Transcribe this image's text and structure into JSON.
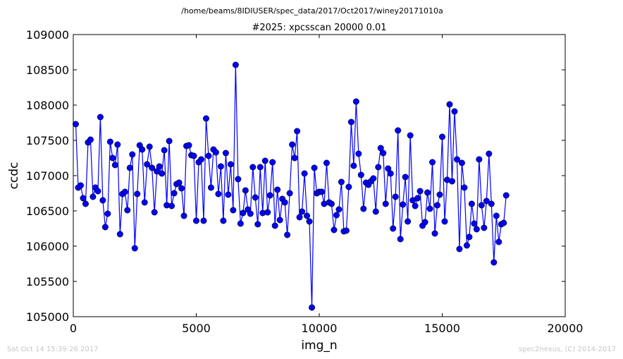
{
  "chart_data": {
    "type": "scatter",
    "suptitle": "/home/beams/8IDIUSER/spec_data/2017/Oct2017/winey20171010a",
    "title": "#2025: xpcsscan 20000 0.01",
    "xlabel": "img_n",
    "ylabel": "ccdc",
    "xlim": [
      0,
      20000
    ],
    "ylim": [
      105000,
      109000
    ],
    "xticks": [
      0,
      5000,
      10000,
      15000,
      20000
    ],
    "yticks": [
      105000,
      105500,
      106000,
      106500,
      107000,
      107500,
      108000,
      108500,
      109000
    ],
    "xtick_labels": [
      "0",
      "5000",
      "10000",
      "15000",
      "20000"
    ],
    "ytick_labels": [
      "105000",
      "105500",
      "106000",
      "106500",
      "107000",
      "107500",
      "108000",
      "108500",
      "109000"
    ],
    "grid": false,
    "legend": false,
    "marker": "circle",
    "line": true,
    "color": "#0000ff",
    "series": [
      {
        "x_start": 100,
        "x_step": 100,
        "values": [
          107730,
          106830,
          106860,
          106680,
          106600,
          107470,
          107510,
          106700,
          106830,
          106780,
          107830,
          106650,
          106270,
          106460,
          107480,
          107250,
          107150,
          107440,
          106170,
          106740,
          106770,
          106510,
          107110,
          107300,
          105970,
          106740,
          107430,
          107370,
          106620,
          107160,
          107410,
          107110,
          106480,
          107060,
          107130,
          107030,
          107360,
          106580,
          107490,
          106570,
          106750,
          106880,
          106900,
          106820,
          106430,
          107420,
          107430,
          107290,
          107280,
          106360,
          107190,
          107230,
          106360,
          107810,
          107280,
          106830,
          107370,
          107330,
          106740,
          107130,
          106360,
          107320,
          106730,
          107160,
          106510,
          108570,
          106950,
          106320,
          106470,
          106790,
          106520,
          106460,
          107120,
          106690,
          106310,
          107120,
          106470,
          107210,
          106480,
          106720,
          107190,
          106290,
          106800,
          106370,
          106670,
          106620,
          106160,
          106750,
          107440,
          107250,
          107630,
          106410,
          106490,
          107030,
          106430,
          106350,
          105130,
          107110,
          106750,
          106770,
          106770,
          106600,
          107180,
          106620,
          106600,
          106230,
          106440,
          106520,
          106910,
          106210,
          106220,
          106840,
          107760,
          107140,
          108050,
          107310,
          107010,
          106530,
          106900,
          106870,
          106920,
          106960,
          106490,
          107120,
          107390,
          107320,
          106600,
          107100,
          107030,
          106250,
          106700,
          107640,
          106100,
          106590,
          106980,
          106350,
          107570,
          106650,
          106570,
          106680,
          106780,
          106290,
          106340,
          106760,
          106530,
          107190,
          106180,
          106580,
          106730,
          107550,
          106350,
          106940,
          108010,
          106920,
          107910,
          107230,
          105960,
          107180,
          106830,
          106010,
          106130,
          106600,
          106320,
          106240,
          107230,
          106580,
          106260,
          106640,
          107310,
          106600,
          105770,
          106430,
          106060,
          106310,
          106330,
          106720
        ]
      }
    ]
  },
  "footer": {
    "left": "Sat Oct 14 15:39:26 2017",
    "right": "spec2nexus, (C) 2014-2017"
  }
}
